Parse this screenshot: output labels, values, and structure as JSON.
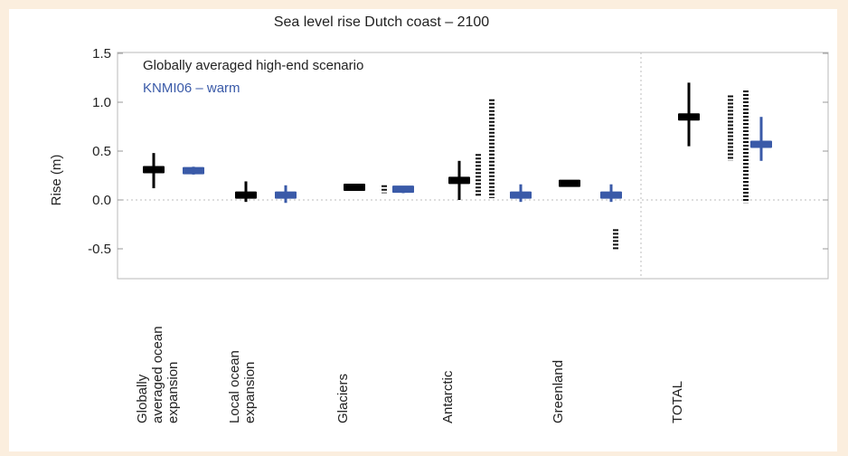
{
  "chart_data": {
    "type": "error-bar",
    "title": "Sea level rise Dutch coast – 2100",
    "ylabel": "Rise (m)",
    "ylim": [
      -0.8,
      1.5
    ],
    "yticks": [
      "1.5",
      "1.0",
      "0.5",
      "0.0",
      "-0.5"
    ],
    "ytick_values": [
      1.5,
      1.0,
      0.5,
      0.0,
      -0.5
    ],
    "grid": false,
    "zero_line": true,
    "legend_placement": "top-left",
    "categories": [
      [
        "Globally",
        "averaged ocean",
        "expansion"
      ],
      [
        "Local ocean",
        "expansion"
      ],
      [
        "Glaciers"
      ],
      [
        "Antarctic"
      ],
      [
        "Greenland"
      ],
      [
        "TOTAL"
      ]
    ],
    "series": [
      {
        "name": "Globally averaged high-end scenario",
        "color": "#000000",
        "style": "cross",
        "values": [
          {
            "central": 0.31,
            "low": 0.12,
            "high": 0.48
          },
          {
            "central": 0.05,
            "low": -0.02,
            "high": 0.19
          },
          {
            "central": 0.13,
            "low": 0.1,
            "high": 0.16
          },
          {
            "central": 0.2,
            "low": 0.0,
            "high": 0.4
          },
          {
            "central": 0.17,
            "low": 0.15,
            "high": 0.2
          },
          {
            "central": 0.85,
            "low": 0.55,
            "high": 1.2
          }
        ]
      },
      {
        "name": "",
        "color": "#000000",
        "style": "dotted-range",
        "values": [
          null,
          null,
          [
            {
              "low": 0.07,
              "high": 0.15
            },
            {
              "low": 0.07,
              "high": 0.14
            }
          ],
          [
            {
              "low": 0.03,
              "high": 0.47
            },
            {
              "low": 0.02,
              "high": 1.03
            }
          ],
          [
            {
              "low": 0.04,
              "high": 0.06
            },
            {
              "low": -0.52,
              "high": -0.3
            }
          ],
          [
            {
              "low": 0.4,
              "high": 1.07
            },
            {
              "low": -0.03,
              "high": 1.12
            }
          ]
        ]
      },
      {
        "name": "KNMI06 – warm",
        "color": "#3a5aa8",
        "style": "cross",
        "values": [
          {
            "central": 0.3,
            "low": 0.26,
            "high": 0.34
          },
          {
            "central": 0.05,
            "low": -0.03,
            "high": 0.15
          },
          {
            "central": 0.11,
            "low": 0.07,
            "high": 0.14
          },
          {
            "central": 0.05,
            "low": -0.02,
            "high": 0.16
          },
          {
            "central": 0.05,
            "low": -0.02,
            "high": 0.16
          },
          {
            "central": 0.57,
            "low": 0.4,
            "high": 0.85
          }
        ]
      }
    ]
  }
}
